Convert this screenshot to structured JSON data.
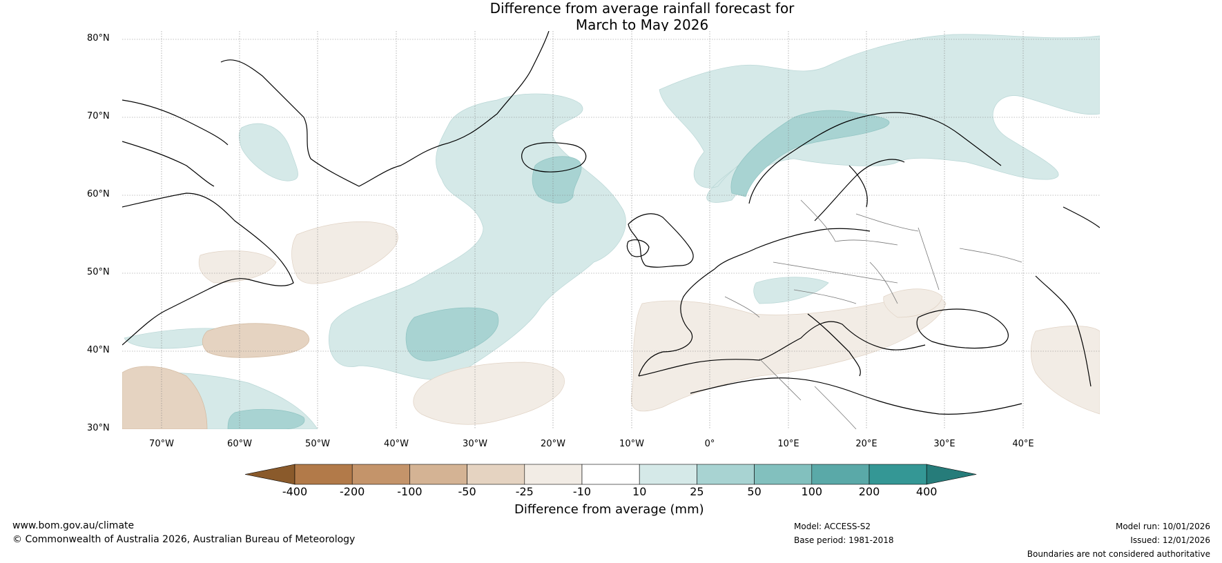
{
  "title": {
    "line1": "Difference from average rainfall forecast for",
    "line2": "March to May 2026"
  },
  "axes": {
    "lat_labels": [
      "80°N",
      "70°N",
      "60°N",
      "50°N",
      "40°N",
      "30°N"
    ],
    "lon_labels": [
      "70°W",
      "60°W",
      "50°W",
      "40°W",
      "30°W",
      "20°W",
      "10°W",
      "0°",
      "10°E",
      "20°E",
      "30°E",
      "40°E"
    ]
  },
  "colorbar": {
    "ticks": [
      "-400",
      "-200",
      "-100",
      "-50",
      "-25",
      "-10",
      "10",
      "25",
      "50",
      "100",
      "200",
      "400"
    ],
    "colors": [
      "#8a5a2b",
      "#b27a49",
      "#c4946a",
      "#d4b394",
      "#e5d3c1",
      "#f2ece5",
      "#ffffff",
      "#d5e9e8",
      "#a8d3d2",
      "#82c0be",
      "#5aa9a8",
      "#349795",
      "#267c7a"
    ],
    "label": "Difference from average (mm)"
  },
  "footer": {
    "website": "www.bom.gov.au/climate",
    "copyright": "© Commonwealth of Australia 2026, Australian Bureau of Meteorology",
    "model": "Model: ACCESS-S2",
    "base_period": "Base period: 1981-2018",
    "model_run": "Model run: 10/01/2026",
    "issued": "Issued: 12/01/2026",
    "disclaimer": "Boundaries are not considered authoritative"
  }
}
